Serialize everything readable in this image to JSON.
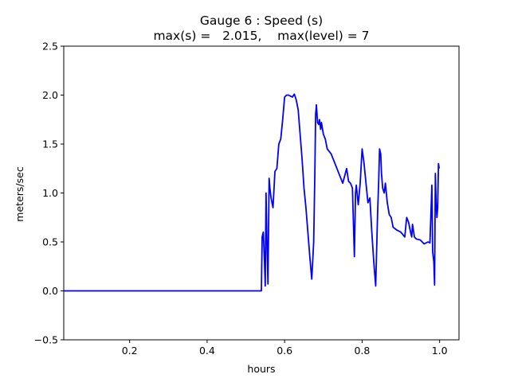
{
  "chart_data": {
    "type": "line",
    "title": "Gauge 6 : Speed (s)",
    "subtitle": "max(s) =   2.015,    max(level) = 7",
    "xlabel": "hours",
    "ylabel": "meters/sec",
    "xlim": [
      0.03,
      1.05
    ],
    "ylim": [
      -0.5,
      2.5
    ],
    "xticks": [
      {
        "value": 0.2,
        "label": "0.2"
      },
      {
        "value": 0.4,
        "label": "0.4"
      },
      {
        "value": 0.6,
        "label": "0.6"
      },
      {
        "value": 0.8,
        "label": "0.8"
      },
      {
        "value": 1.0,
        "label": "1.0"
      }
    ],
    "yticks": [
      {
        "value": -0.5,
        "label": "−0.5"
      },
      {
        "value": 0.0,
        "label": "0.0"
      },
      {
        "value": 0.5,
        "label": "0.5"
      },
      {
        "value": 1.0,
        "label": "1.0"
      },
      {
        "value": 1.5,
        "label": "1.5"
      },
      {
        "value": 2.0,
        "label": "2.0"
      },
      {
        "value": 2.5,
        "label": "2.5"
      }
    ],
    "grid": false,
    "series": [
      {
        "color": "#0000ff",
        "x": [
          0.03,
          0.54,
          0.542,
          0.545,
          0.548,
          0.55,
          0.552,
          0.555,
          0.557,
          0.56,
          0.562,
          0.565,
          0.57,
          0.575,
          0.58,
          0.585,
          0.59,
          0.595,
          0.6,
          0.605,
          0.61,
          0.62,
          0.625,
          0.63,
          0.635,
          0.64,
          0.645,
          0.65,
          0.655,
          0.66,
          0.665,
          0.67,
          0.675,
          0.678,
          0.68,
          0.682,
          0.685,
          0.688,
          0.69,
          0.693,
          0.695,
          0.7,
          0.705,
          0.71,
          0.72,
          0.73,
          0.74,
          0.75,
          0.76,
          0.765,
          0.77,
          0.775,
          0.78,
          0.783,
          0.785,
          0.79,
          0.795,
          0.8,
          0.805,
          0.81,
          0.815,
          0.82,
          0.825,
          0.83,
          0.835,
          0.84,
          0.843,
          0.845,
          0.848,
          0.85,
          0.853,
          0.857,
          0.86,
          0.865,
          0.87,
          0.875,
          0.88,
          0.89,
          0.9,
          0.91,
          0.915,
          0.92,
          0.925,
          0.928,
          0.93,
          0.935,
          0.94,
          0.95,
          0.96,
          0.97,
          0.975,
          0.98,
          0.982,
          0.985,
          0.987,
          0.989,
          0.991,
          0.993,
          0.995,
          0.997,
          0.999
        ],
        "y": [
          0.0,
          0.0,
          0.55,
          0.6,
          0.3,
          0.05,
          1.0,
          0.4,
          0.07,
          1.15,
          1.05,
          0.95,
          0.85,
          1.22,
          1.25,
          1.5,
          1.55,
          1.75,
          1.98,
          2.0,
          2.0,
          1.98,
          2.01,
          1.95,
          1.85,
          1.6,
          1.35,
          1.05,
          0.85,
          0.6,
          0.35,
          0.12,
          0.5,
          1.2,
          1.8,
          1.9,
          1.72,
          1.7,
          1.75,
          1.65,
          1.72,
          1.6,
          1.55,
          1.45,
          1.4,
          1.3,
          1.2,
          1.1,
          1.25,
          1.12,
          1.1,
          1.05,
          0.35,
          1.0,
          1.08,
          0.88,
          1.1,
          1.45,
          1.3,
          1.1,
          0.9,
          0.95,
          0.6,
          0.3,
          0.05,
          0.8,
          1.15,
          1.45,
          1.4,
          1.2,
          1.05,
          1.0,
          1.1,
          0.9,
          0.78,
          0.75,
          0.65,
          0.62,
          0.6,
          0.55,
          0.75,
          0.7,
          0.6,
          0.55,
          0.68,
          0.55,
          0.53,
          0.52,
          0.48,
          0.5,
          0.49,
          1.08,
          0.4,
          0.3,
          0.06,
          1.2,
          0.9,
          0.75,
          0.85,
          1.3,
          1.25
        ]
      }
    ]
  }
}
